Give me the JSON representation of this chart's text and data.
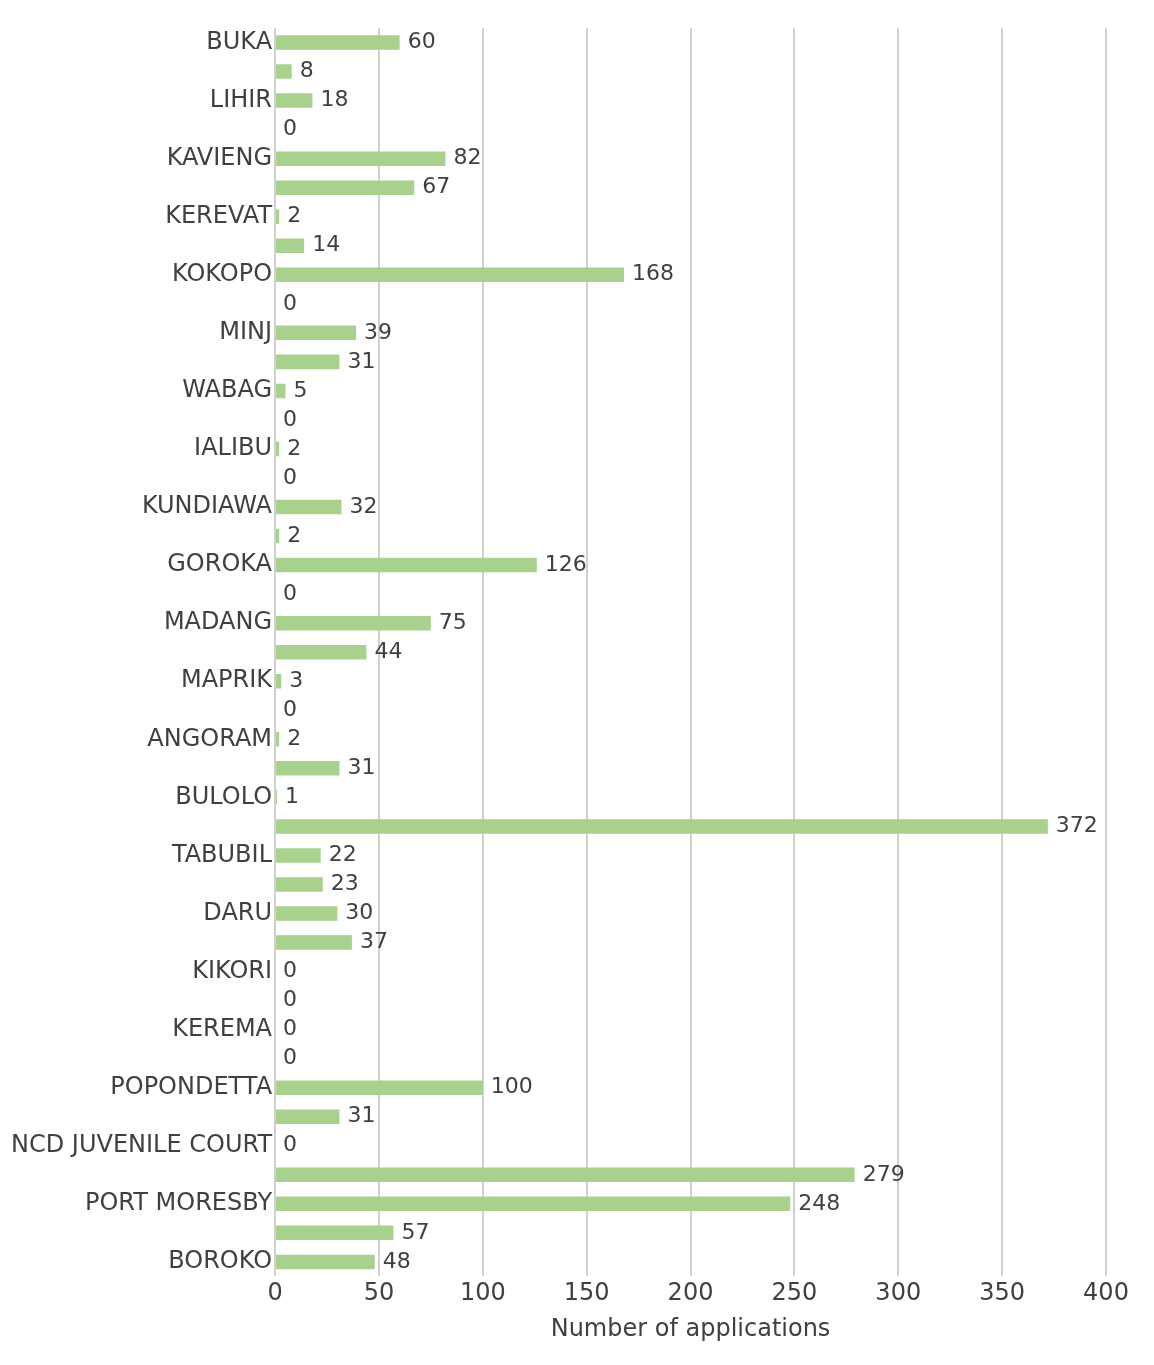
{
  "chart_data": {
    "type": "bar",
    "orientation": "horizontal",
    "xlabel": "Number of applications",
    "categories": [
      "BUKA",
      null,
      "LIHIR",
      null,
      "KAVIENG",
      null,
      "KEREVAT",
      null,
      "KOKOPO",
      null,
      "MINJ",
      null,
      "WABAG",
      null,
      "IALIBU",
      null,
      "KUNDIAWA",
      null,
      "GOROKA",
      null,
      "MADANG",
      null,
      "MAPRIK",
      null,
      "ANGORAM",
      null,
      "BULOLO",
      null,
      "TABUBIL",
      null,
      "DARU",
      null,
      "KIKORI",
      null,
      "KEREMA",
      null,
      "POPONDETTA",
      null,
      "NCD JUVENILE COURT",
      null,
      "PORT MORESBY",
      null,
      "BOROKO"
    ],
    "values": [
      60,
      8,
      18,
      0,
      82,
      67,
      2,
      14,
      168,
      0,
      39,
      31,
      5,
      0,
      2,
      0,
      32,
      2,
      126,
      0,
      75,
      44,
      3,
      0,
      2,
      31,
      1,
      372,
      22,
      23,
      30,
      37,
      0,
      0,
      0,
      0,
      100,
      31,
      0,
      279,
      248,
      57,
      48
    ],
    "color": "#a9d18e",
    "xlim": [
      0,
      400
    ],
    "xticks": [
      0,
      50,
      100,
      150,
      200,
      250,
      300,
      350,
      400
    ],
    "grid": "x",
    "data_labels": true
  }
}
